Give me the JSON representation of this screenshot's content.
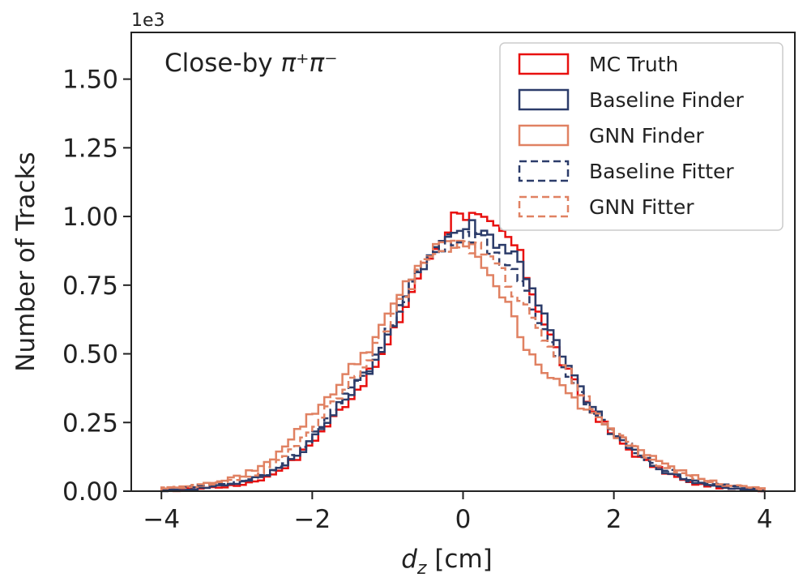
{
  "chart_data": {
    "type": "line",
    "title": "",
    "annotation": {
      "prefix": "Close-by ",
      "math": "π⁺π⁻"
    },
    "xlabel": {
      "var": "d",
      "sub": "z",
      "unit": " [cm]"
    },
    "ylabel": "Number of Tracks",
    "y_scale_label": "1e3",
    "xlim": [
      -4.4,
      4.4
    ],
    "ylim": [
      0,
      1.67
    ],
    "x_ticks": [
      -4,
      -2,
      0,
      2,
      4
    ],
    "x_tick_labels": [
      "−4",
      "−2",
      "0",
      "2",
      "4"
    ],
    "y_ticks": [
      0,
      0.25,
      0.5,
      0.75,
      1.0,
      1.25,
      1.5
    ],
    "y_tick_labels": [
      "0.00",
      "0.25",
      "0.50",
      "0.75",
      "1.00",
      "1.25",
      "1.50"
    ],
    "legend_position": "top-right",
    "bin_edges_range": [
      -4,
      4
    ],
    "series": [
      {
        "name": "MC Truth",
        "color": "#e8100f",
        "dashed": false,
        "knots": [
          [
            -4.0,
            0.0
          ],
          [
            -3.5,
            0.01
          ],
          [
            -3.0,
            0.02
          ],
          [
            -2.6,
            0.05
          ],
          [
            -2.2,
            0.12
          ],
          [
            -2.0,
            0.18
          ],
          [
            -1.8,
            0.24
          ],
          [
            -1.5,
            0.34
          ],
          [
            -1.2,
            0.44
          ],
          [
            -1.0,
            0.53
          ],
          [
            -0.8,
            0.65
          ],
          [
            -0.6,
            0.78
          ],
          [
            -0.4,
            0.87
          ],
          [
            -0.2,
            0.96
          ],
          [
            -0.05,
            1.04
          ],
          [
            0.05,
            1.0
          ],
          [
            0.15,
            1.0
          ],
          [
            0.3,
            0.97
          ],
          [
            0.5,
            0.94
          ],
          [
            0.65,
            0.91
          ],
          [
            0.75,
            0.86
          ],
          [
            0.9,
            0.74
          ],
          [
            1.1,
            0.6
          ],
          [
            1.3,
            0.48
          ],
          [
            1.5,
            0.38
          ],
          [
            1.7,
            0.3
          ],
          [
            2.0,
            0.2
          ],
          [
            2.3,
            0.13
          ],
          [
            2.6,
            0.08
          ],
          [
            3.0,
            0.03
          ],
          [
            3.5,
            0.01
          ],
          [
            4.0,
            0.0
          ]
        ],
        "values": []
      },
      {
        "name": "Baseline Finder",
        "color": "#2c3c6a",
        "dashed": false,
        "knots": [
          [
            -4.0,
            0.0
          ],
          [
            -3.5,
            0.01
          ],
          [
            -3.0,
            0.03
          ],
          [
            -2.6,
            0.06
          ],
          [
            -2.2,
            0.13
          ],
          [
            -2.0,
            0.19
          ],
          [
            -1.8,
            0.25
          ],
          [
            -1.5,
            0.36
          ],
          [
            -1.2,
            0.46
          ],
          [
            -1.0,
            0.56
          ],
          [
            -0.8,
            0.68
          ],
          [
            -0.6,
            0.8
          ],
          [
            -0.4,
            0.88
          ],
          [
            -0.2,
            0.93
          ],
          [
            0.0,
            0.96
          ],
          [
            0.15,
            0.97
          ],
          [
            0.3,
            0.94
          ],
          [
            0.5,
            0.9
          ],
          [
            0.7,
            0.86
          ],
          [
            0.9,
            0.76
          ],
          [
            1.1,
            0.62
          ],
          [
            1.3,
            0.5
          ],
          [
            1.5,
            0.4
          ],
          [
            1.7,
            0.31
          ],
          [
            2.0,
            0.21
          ],
          [
            2.3,
            0.14
          ],
          [
            2.6,
            0.08
          ],
          [
            3.0,
            0.04
          ],
          [
            3.5,
            0.01
          ],
          [
            4.0,
            0.0
          ]
        ],
        "values": []
      },
      {
        "name": "GNN Finder",
        "color": "#e08162",
        "dashed": false,
        "knots": [
          [
            -4.0,
            0.01
          ],
          [
            -3.5,
            0.02
          ],
          [
            -3.0,
            0.05
          ],
          [
            -2.6,
            0.1
          ],
          [
            -2.2,
            0.22
          ],
          [
            -2.0,
            0.28
          ],
          [
            -1.8,
            0.34
          ],
          [
            -1.5,
            0.44
          ],
          [
            -1.2,
            0.54
          ],
          [
            -1.0,
            0.63
          ],
          [
            -0.8,
            0.73
          ],
          [
            -0.6,
            0.82
          ],
          [
            -0.4,
            0.87
          ],
          [
            -0.2,
            0.9
          ],
          [
            0.0,
            0.9
          ],
          [
            0.2,
            0.86
          ],
          [
            0.4,
            0.78
          ],
          [
            0.6,
            0.67
          ],
          [
            0.8,
            0.55
          ],
          [
            1.0,
            0.47
          ],
          [
            1.2,
            0.4
          ],
          [
            1.4,
            0.36
          ],
          [
            1.6,
            0.3
          ],
          [
            1.8,
            0.26
          ],
          [
            2.0,
            0.21
          ],
          [
            2.3,
            0.16
          ],
          [
            2.6,
            0.12
          ],
          [
            3.0,
            0.06
          ],
          [
            3.5,
            0.02
          ],
          [
            4.0,
            0.01
          ]
        ],
        "values": []
      },
      {
        "name": "Baseline Fitter",
        "color": "#2c3c6a",
        "dashed": true,
        "knots": [
          [
            -4.0,
            0.0
          ],
          [
            -3.5,
            0.02
          ],
          [
            -3.0,
            0.03
          ],
          [
            -2.6,
            0.06
          ],
          [
            -2.2,
            0.14
          ],
          [
            -2.0,
            0.2
          ],
          [
            -1.8,
            0.26
          ],
          [
            -1.5,
            0.36
          ],
          [
            -1.2,
            0.47
          ],
          [
            -1.0,
            0.57
          ],
          [
            -0.8,
            0.69
          ],
          [
            -0.6,
            0.8
          ],
          [
            -0.4,
            0.87
          ],
          [
            -0.2,
            0.91
          ],
          [
            0.0,
            0.94
          ],
          [
            0.2,
            0.93
          ],
          [
            0.4,
            0.88
          ],
          [
            0.6,
            0.82
          ],
          [
            0.8,
            0.73
          ],
          [
            1.0,
            0.62
          ],
          [
            1.2,
            0.53
          ],
          [
            1.4,
            0.43
          ],
          [
            1.6,
            0.34
          ],
          [
            1.8,
            0.27
          ],
          [
            2.0,
            0.21
          ],
          [
            2.3,
            0.14
          ],
          [
            2.6,
            0.09
          ],
          [
            3.0,
            0.04
          ],
          [
            3.5,
            0.02
          ],
          [
            4.0,
            0.0
          ]
        ],
        "values": []
      },
      {
        "name": "GNN Fitter",
        "color": "#e08162",
        "dashed": true,
        "knots": [
          [
            -4.0,
            0.01
          ],
          [
            -3.5,
            0.02
          ],
          [
            -3.0,
            0.04
          ],
          [
            -2.6,
            0.08
          ],
          [
            -2.2,
            0.17
          ],
          [
            -2.0,
            0.23
          ],
          [
            -1.8,
            0.3
          ],
          [
            -1.5,
            0.4
          ],
          [
            -1.2,
            0.51
          ],
          [
            -1.0,
            0.6
          ],
          [
            -0.8,
            0.7
          ],
          [
            -0.6,
            0.8
          ],
          [
            -0.4,
            0.86
          ],
          [
            -0.2,
            0.89
          ],
          [
            0.0,
            0.9
          ],
          [
            0.2,
            0.88
          ],
          [
            0.4,
            0.83
          ],
          [
            0.6,
            0.76
          ],
          [
            0.8,
            0.68
          ],
          [
            1.0,
            0.6
          ],
          [
            1.2,
            0.52
          ],
          [
            1.4,
            0.43
          ],
          [
            1.6,
            0.35
          ],
          [
            1.8,
            0.28
          ],
          [
            2.0,
            0.22
          ],
          [
            2.3,
            0.15
          ],
          [
            2.6,
            0.1
          ],
          [
            3.0,
            0.05
          ],
          [
            3.5,
            0.02
          ],
          [
            4.0,
            0.01
          ]
        ],
        "values": []
      }
    ]
  }
}
